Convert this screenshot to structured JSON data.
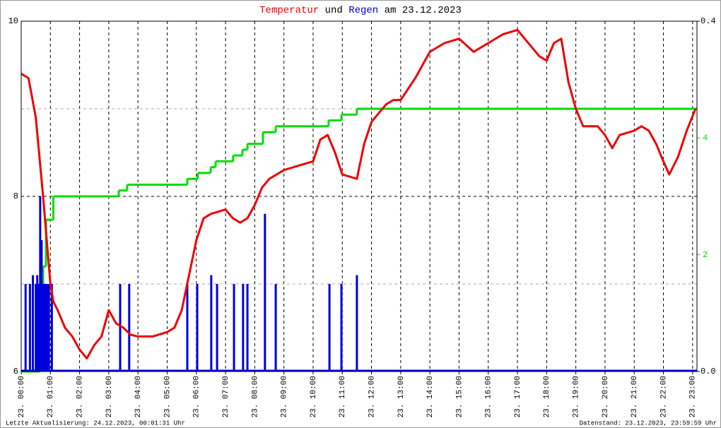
{
  "chart_data": {
    "type": "line",
    "title": {
      "join": "und",
      "date": "am 23.12.2023"
    },
    "footer_left": "Letzte Aktualisierung: 24.12.2023, 00:01:31 Uhr",
    "footer_right": "Datenstand: 23.12.2023, 23:59:59 Uhr",
    "xlim": [
      0,
      23.15
    ],
    "xticks": [
      {
        "value": 0,
        "label": "23. 00:00"
      },
      {
        "value": 1,
        "label": "23. 01:00"
      },
      {
        "value": 2,
        "label": "23. 02:00"
      },
      {
        "value": 3,
        "label": "23. 03:00"
      },
      {
        "value": 4,
        "label": "23. 04:00"
      },
      {
        "value": 5,
        "label": "23. 05:00"
      },
      {
        "value": 6,
        "label": "23. 06:00"
      },
      {
        "value": 7,
        "label": "23. 07:00"
      },
      {
        "value": 8,
        "label": "23. 08:00"
      },
      {
        "value": 9,
        "label": "23. 09:00"
      },
      {
        "value": 10,
        "label": "23. 10:00"
      },
      {
        "value": 11,
        "label": "23. 11:00"
      },
      {
        "value": 12,
        "label": "23. 12:00"
      },
      {
        "value": 13,
        "label": "23. 13:00"
      },
      {
        "value": 14,
        "label": "23. 14:00"
      },
      {
        "value": 15,
        "label": "23. 15:00"
      },
      {
        "value": 16,
        "label": "23. 16:00"
      },
      {
        "value": 17,
        "label": "23. 17:00"
      },
      {
        "value": 18,
        "label": "23. 18:00"
      },
      {
        "value": 19,
        "label": "23. 19:00"
      },
      {
        "value": 20,
        "label": "23. 20:00"
      },
      {
        "value": 21,
        "label": "23. 21:00"
      },
      {
        "value": 22,
        "label": "23. 22:00"
      },
      {
        "value": 23,
        "label": "23. 23:00"
      }
    ],
    "ylim": [
      6,
      10
    ],
    "yticks": [
      6,
      8,
      10
    ],
    "ygrid_minor": [
      7,
      9
    ],
    "y2lim": [
      0,
      0.4
    ],
    "y2ticks": [
      {
        "value": 0,
        "label": "0.0"
      },
      0.4
    ],
    "y3lim": [
      0,
      6
    ],
    "y3ticks": [
      2,
      4
    ],
    "y3color": "#00dd00",
    "grid": true,
    "series": [
      {
        "name": "Temperatur",
        "color": "#ee0000",
        "type": "line",
        "axis": "y",
        "x": [
          0,
          0.25,
          0.5,
          0.75,
          1.0,
          1.1,
          1.25,
          1.5,
          1.75,
          2.0,
          2.25,
          2.5,
          2.75,
          3.0,
          3.25,
          3.5,
          3.75,
          4.0,
          4.5,
          5.0,
          5.25,
          5.5,
          5.75,
          6.0,
          6.25,
          6.5,
          7.0,
          7.25,
          7.5,
          7.75,
          8.0,
          8.25,
          8.5,
          9.0,
          9.5,
          10.0,
          10.25,
          10.5,
          10.75,
          11.0,
          11.5,
          11.75,
          12.0,
          12.5,
          12.75,
          13.0,
          13.5,
          14.0,
          14.5,
          15.0,
          15.5,
          15.75,
          16.0,
          16.5,
          17.0,
          17.25,
          17.5,
          17.75,
          18.0,
          18.25,
          18.5,
          18.75,
          19.0,
          19.25,
          19.75,
          20.0,
          20.25,
          20.5,
          21.0,
          21.25,
          21.5,
          21.75,
          22.0,
          22.2,
          22.5,
          22.8,
          23.1
        ],
        "values": [
          9.4,
          9.35,
          8.9,
          8.0,
          7.0,
          6.8,
          6.7,
          6.5,
          6.4,
          6.25,
          6.15,
          6.3,
          6.4,
          6.7,
          6.55,
          6.5,
          6.42,
          6.4,
          6.4,
          6.45,
          6.5,
          6.7,
          7.1,
          7.5,
          7.75,
          7.8,
          7.85,
          7.75,
          7.7,
          7.75,
          7.9,
          8.1,
          8.2,
          8.3,
          8.35,
          8.4,
          8.65,
          8.7,
          8.5,
          8.25,
          8.2,
          8.6,
          8.85,
          9.05,
          9.1,
          9.1,
          9.35,
          9.65,
          9.75,
          9.8,
          9.65,
          9.7,
          9.75,
          9.85,
          9.9,
          9.8,
          9.7,
          9.6,
          9.55,
          9.75,
          9.8,
          9.3,
          9.0,
          8.8,
          8.8,
          8.7,
          8.55,
          8.7,
          8.75,
          8.8,
          8.75,
          8.6,
          8.4,
          8.25,
          8.45,
          8.75,
          9.0
        ]
      },
      {
        "name": "Regen",
        "color": "#0000dd",
        "type": "bar",
        "axis": "y2",
        "x": [
          0.15,
          0.3,
          0.4,
          0.5,
          0.55,
          0.6,
          0.65,
          0.7,
          0.75,
          0.8,
          0.85,
          0.9,
          0.95,
          1.05,
          3.39,
          3.7,
          5.69,
          6.03,
          6.51,
          6.71,
          7.29,
          7.6,
          7.75,
          8.35,
          8.72,
          10.56,
          10.97,
          11.5
        ],
        "values": [
          0.1,
          0.1,
          0.11,
          0.1,
          0.11,
          0.1,
          0.2,
          0.15,
          0.1,
          0.1,
          0.1,
          0.1,
          0.1,
          0.1,
          0.1,
          0.1,
          0.1,
          0.1,
          0.11,
          0.1,
          0.1,
          0.1,
          0.1,
          0.18,
          0.1,
          0.1,
          0.1,
          0.11
        ]
      },
      {
        "color": "#00dd00",
        "type": "step",
        "axis": "y3",
        "x": [
          0,
          0.65,
          0.75,
          0.85,
          1.1,
          3.34,
          3.63,
          5.69,
          6.05,
          6.49,
          6.66,
          7.26,
          7.58,
          7.75,
          8.28,
          8.72,
          10.53,
          10.97,
          11.5
        ],
        "values": [
          0,
          1.4,
          1.8,
          2.6,
          3.0,
          3.1,
          3.2,
          3.3,
          3.4,
          3.5,
          3.6,
          3.7,
          3.8,
          3.9,
          4.1,
          4.2,
          4.3,
          4.4,
          4.5
        ]
      }
    ]
  }
}
